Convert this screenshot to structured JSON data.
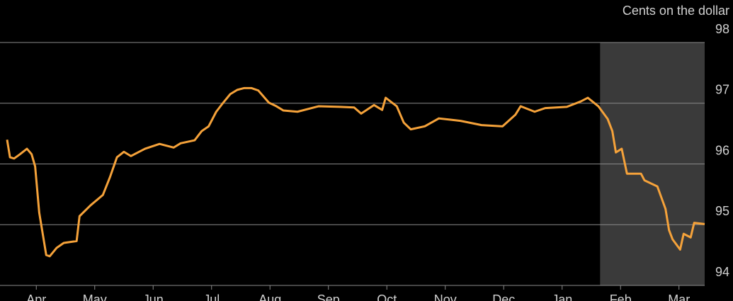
{
  "chart_data": {
    "type": "line",
    "y_unit_label": "Cents on the dollar",
    "x": [
      0.0,
      0.05,
      0.12,
      0.22,
      0.34,
      0.42,
      0.48,
      0.55,
      0.61,
      0.67,
      0.73,
      0.85,
      0.97,
      1.19,
      1.24,
      1.43,
      1.64,
      1.76,
      1.88,
      2.0,
      2.12,
      2.36,
      2.61,
      2.85,
      2.97,
      3.21,
      3.33,
      3.45,
      3.58,
      3.7,
      3.82,
      3.94,
      4.06,
      4.18,
      4.3,
      4.48,
      4.61,
      4.73,
      4.97,
      5.33,
      5.7,
      5.94,
      6.06,
      6.28,
      6.42,
      6.48,
      6.67,
      6.79,
      6.91,
      7.15,
      7.39,
      7.76,
      8.12,
      8.48,
      8.7,
      8.79,
      9.03,
      9.21,
      9.58,
      9.82,
      9.94,
      10.12,
      10.28,
      10.36,
      10.42,
      10.52,
      10.61,
      10.85,
      10.91,
      11.13,
      11.27,
      11.33,
      11.39,
      11.52,
      11.58,
      11.7,
      11.76,
      11.94
    ],
    "series": [
      {
        "color": "#f5a23a",
        "values": [
          96.4,
          96.11,
          96.09,
          96.16,
          96.25,
          96.16,
          95.96,
          95.2,
          94.85,
          94.5,
          94.48,
          94.62,
          94.7,
          94.73,
          95.14,
          95.32,
          95.49,
          95.78,
          96.11,
          96.2,
          96.13,
          96.25,
          96.33,
          96.27,
          96.34,
          96.39,
          96.54,
          96.62,
          96.86,
          97.01,
          97.15,
          97.22,
          97.25,
          97.25,
          97.21,
          97.01,
          96.95,
          96.88,
          96.86,
          96.95,
          96.94,
          96.93,
          96.83,
          96.97,
          96.89,
          97.09,
          96.95,
          96.68,
          96.57,
          96.62,
          96.75,
          96.71,
          96.64,
          96.62,
          96.81,
          96.95,
          96.86,
          96.92,
          96.94,
          97.03,
          97.09,
          96.95,
          96.74,
          96.54,
          96.19,
          96.25,
          95.84,
          95.84,
          95.73,
          95.63,
          95.26,
          94.91,
          94.76,
          94.59,
          94.85,
          94.79,
          95.03,
          95.01
        ]
      }
    ],
    "xlim": [
      0,
      11.94
    ],
    "xticks": [
      {
        "value": 0.5,
        "label": "Apr"
      },
      {
        "value": 1.5,
        "label": "May"
      },
      {
        "value": 2.5,
        "label": "Jun"
      },
      {
        "value": 3.5,
        "label": "Jul"
      },
      {
        "value": 4.5,
        "label": "Aug"
      },
      {
        "value": 5.5,
        "label": "Sep"
      },
      {
        "value": 6.5,
        "label": "Oct"
      },
      {
        "value": 7.5,
        "label": "Nov"
      },
      {
        "value": 8.5,
        "label": "Dec"
      },
      {
        "value": 9.5,
        "label": "Jan"
      },
      {
        "value": 10.5,
        "label": "Feb"
      },
      {
        "value": 11.5,
        "label": "Mar"
      }
    ],
    "ylim": [
      94,
      98
    ],
    "yticks": [
      94,
      95,
      96,
      97,
      98
    ],
    "grid": true,
    "shade": [
      10.15,
      11.94
    ],
    "shade_color": "#3a3a3a"
  }
}
